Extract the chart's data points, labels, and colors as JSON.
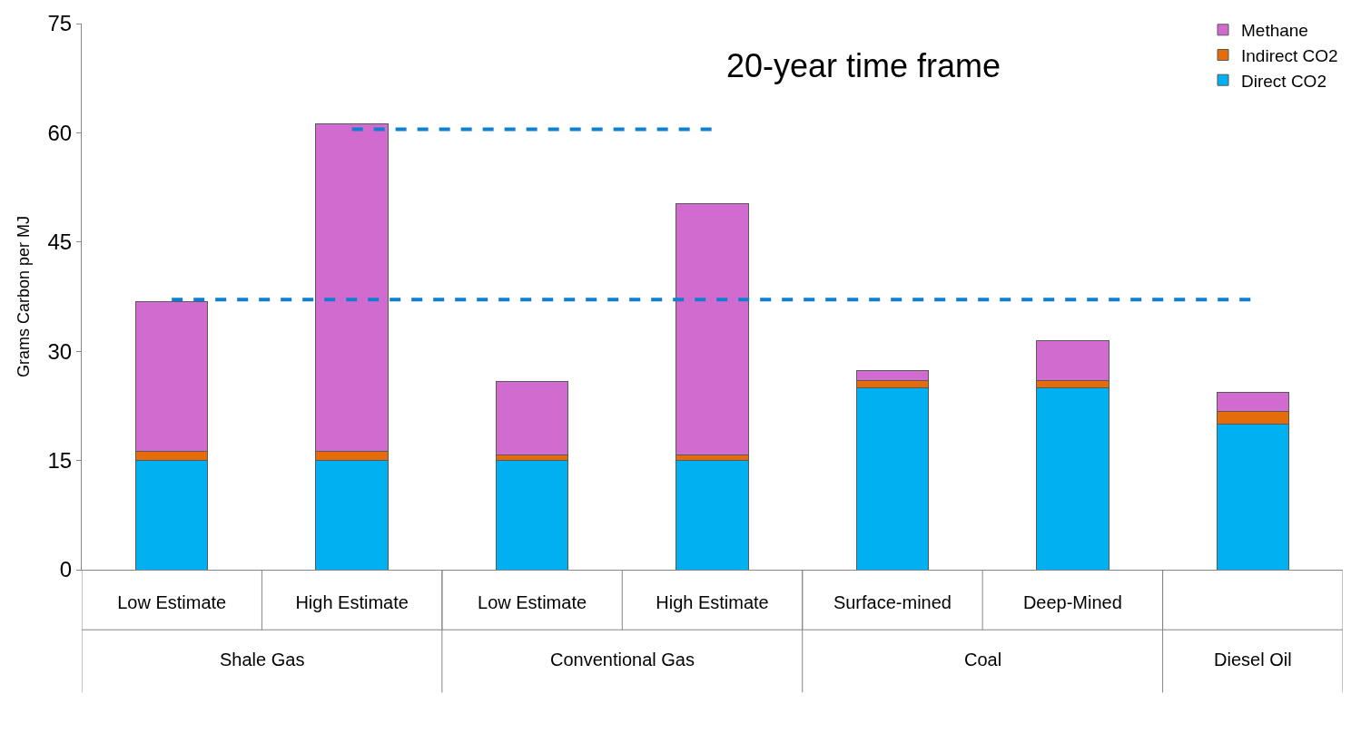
{
  "chart_data": {
    "type": "bar",
    "title": "20-year time frame",
    "ylabel": "Grams Carbon per MJ",
    "stacked": true,
    "categories": [
      "Low Estimate",
      "High Estimate",
      "Low Estimate",
      "High Estimate",
      "Surface-mined",
      "Deep-Mined",
      null
    ],
    "annotations": [
      "Shale Gas",
      "Conventional Gas",
      "Coal",
      "Diesel Oil"
    ],
    "series": [
      {
        "name": "Direct CO2",
        "color": "#00b0f0",
        "values": [
          15,
          15,
          15,
          15,
          25,
          25,
          20
        ]
      },
      {
        "name": "Indirect CO2",
        "color": "#e46c0a",
        "values": [
          1.3,
          1.2,
          0.8,
          0.8,
          1,
          1,
          1.7
        ]
      },
      {
        "name": "Methane",
        "color": "#d26bcf",
        "values": [
          20.5,
          45,
          10.1,
          34.5,
          1.4,
          5.5,
          2.6
        ]
      },
      {
        "type": "line",
        "color": "#0f7fcf",
        "line_style": "dashed",
        "values": [
          37.1,
          37.1,
          37.1,
          37.1,
          37.1,
          37.1,
          37.1
        ]
      },
      {
        "type": "line",
        "color": "#0f7fcf",
        "line_style": "dashed",
        "values": [
          null,
          60.5,
          60.5,
          60.5,
          null,
          null,
          null
        ]
      }
    ],
    "ylim": [
      0,
      75
    ],
    "yticks": [
      0,
      15,
      30,
      45,
      60,
      75
    ],
    "legend": "top right"
  }
}
